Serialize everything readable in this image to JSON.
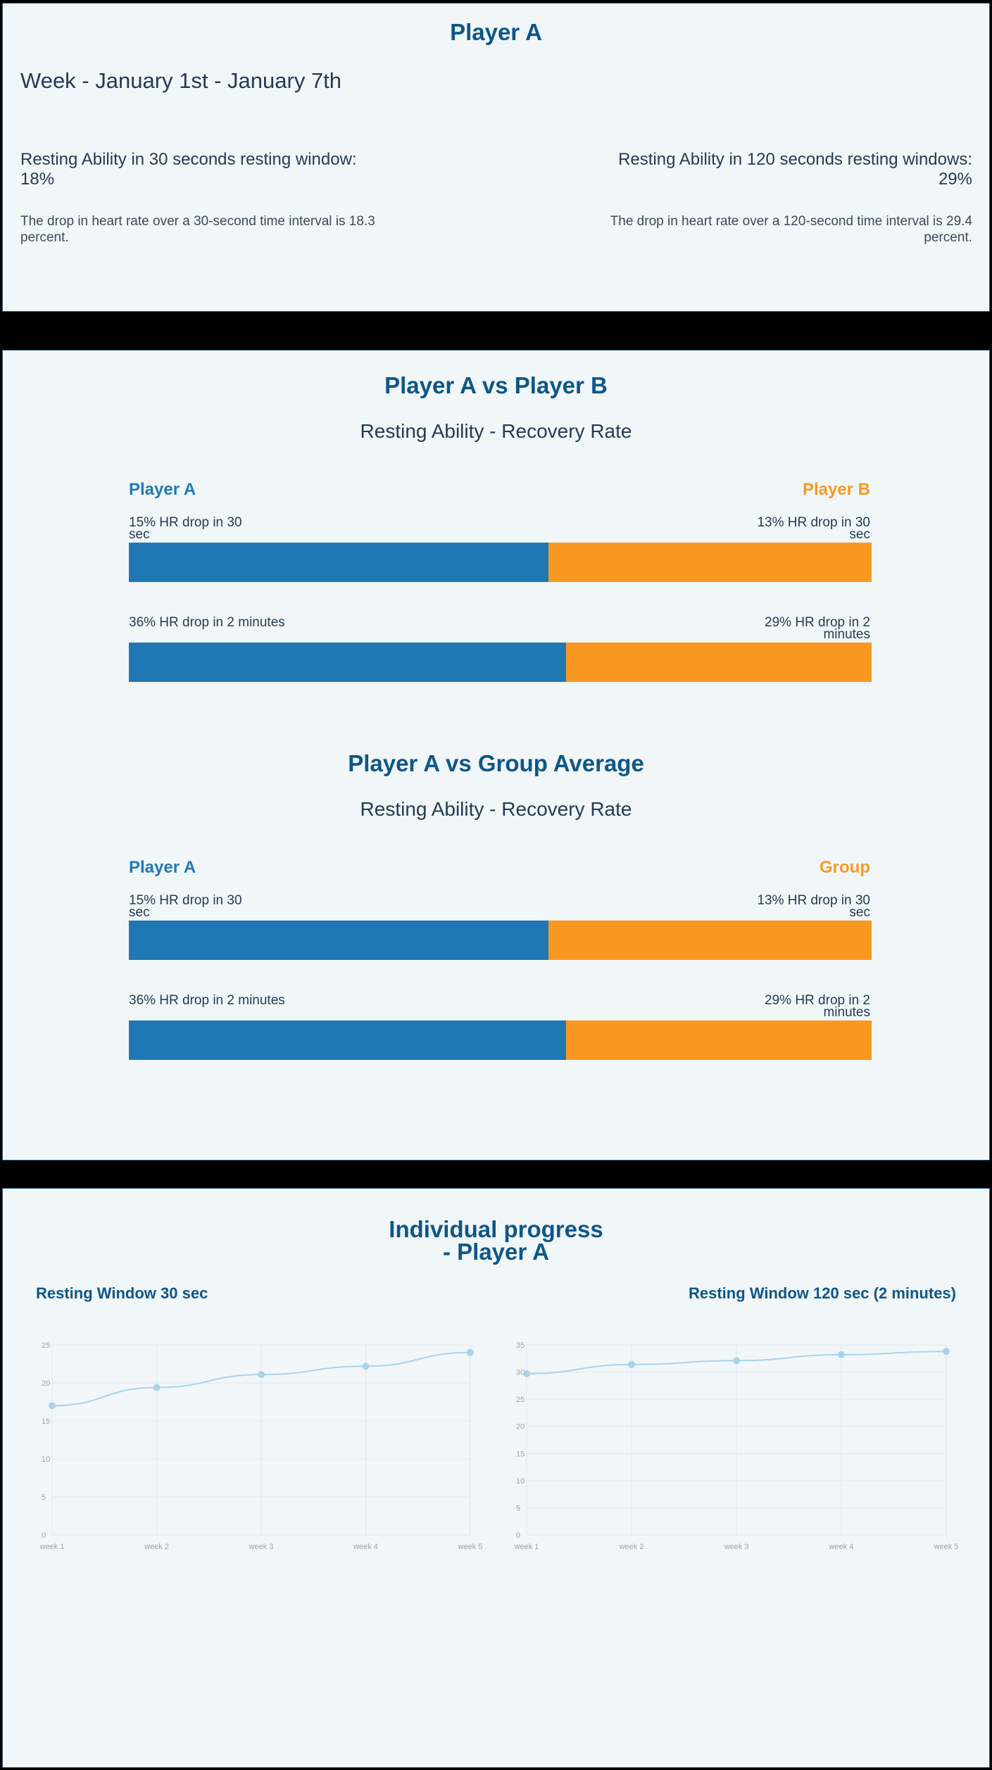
{
  "summary": {
    "title": "Player A",
    "week": "Week - January 1st - January 7th",
    "metric30": {
      "heading_line1": "Resting Ability in 30 seconds resting window:",
      "heading_line2": "18%",
      "desc_line1": "The drop in heart rate over a 30-second time interval is 18.3",
      "desc_line2": "percent."
    },
    "metric120": {
      "heading_line1": "Resting Ability in 120 seconds resting windows:",
      "heading_line2": "29%",
      "desc_line1": "The drop in heart rate over a 120-second time interval is 29.4",
      "desc_line2": "percent."
    }
  },
  "comparisons": [
    {
      "title": "Player A vs Player B",
      "subtitle": "Resting Ability - Recovery Rate",
      "left_name": "Player A",
      "right_name": "Player B",
      "rows": [
        {
          "left_l1": "15% HR drop in 30",
          "left_l2": "sec",
          "right_l1": "13% HR drop in 30",
          "right_l2": "sec",
          "left_share": 0.565
        },
        {
          "left_l1": "36% HR drop in 2 minutes",
          "left_l2": "",
          "right_l1": "29% HR drop in 2",
          "right_l2": "minutes",
          "left_share": 0.589
        }
      ]
    },
    {
      "title": "Player A vs Group Average",
      "subtitle": "Resting Ability - Recovery Rate",
      "left_name": "Player A",
      "right_name": "Group",
      "rows": [
        {
          "left_l1": "15% HR drop in 30",
          "left_l2": "sec",
          "right_l1": "13% HR drop in 30",
          "right_l2": "sec",
          "left_share": 0.565
        },
        {
          "left_l1": "36% HR drop in 2 minutes",
          "left_l2": "",
          "right_l1": "29% HR drop in 2",
          "right_l2": "minutes",
          "left_share": 0.589
        }
      ]
    }
  ],
  "colors": {
    "left_bar": "#1f78b4",
    "right_bar": "#f99820",
    "line": "#a9d3e8",
    "grid": "#e2e8ed",
    "axis_text": "#9aa5ad"
  },
  "progress": {
    "title_line1": "Individual progress",
    "title_line2": "- Player A"
  },
  "chart_data": [
    {
      "type": "line",
      "title": "Resting Window 30 sec",
      "x": [
        "week 1",
        "week 2",
        "week 3",
        "week 4",
        "week 5"
      ],
      "series": [
        {
          "values": [
            17,
            19.4,
            21.1,
            22.2,
            24
          ]
        }
      ],
      "ylim": [
        0,
        25
      ],
      "yticks": [
        0,
        5,
        10,
        15,
        20,
        25
      ],
      "grid": true
    },
    {
      "type": "line",
      "title": "Resting Window 120 sec (2 minutes)",
      "x": [
        "week 1",
        "week 2",
        "week 3",
        "week 4",
        "week 5"
      ],
      "series": [
        {
          "values": [
            29.7,
            31.4,
            32.1,
            33.2,
            33.8
          ]
        }
      ],
      "ylim": [
        0,
        35
      ],
      "yticks": [
        0,
        5,
        10,
        15,
        20,
        25,
        30,
        35
      ],
      "grid": true
    }
  ]
}
